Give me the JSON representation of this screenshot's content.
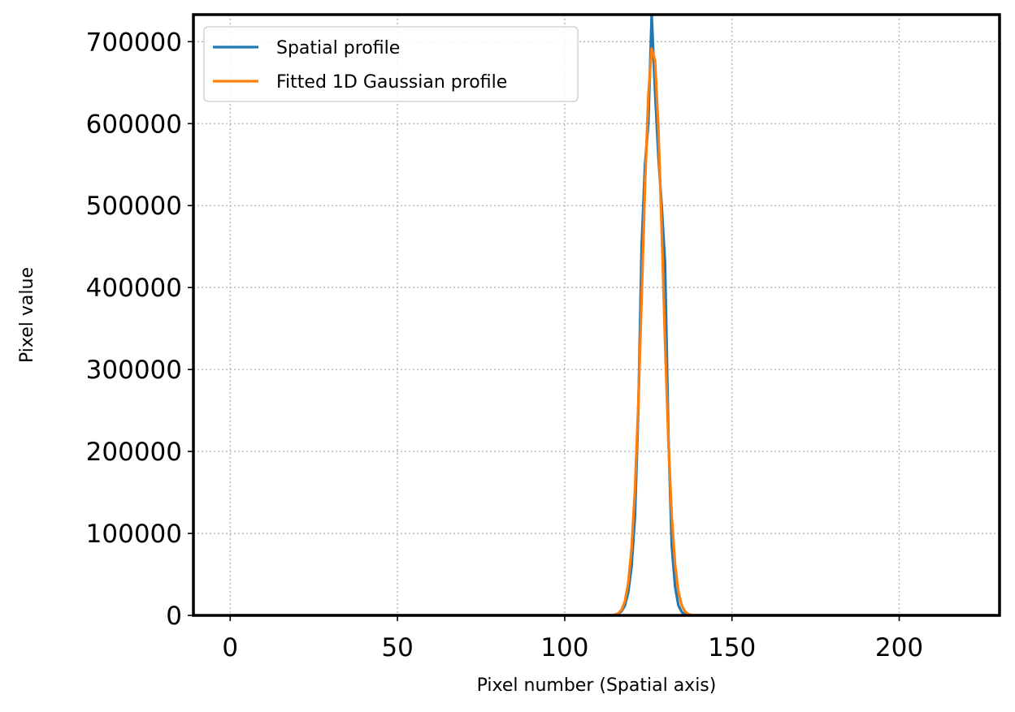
{
  "chart_data": {
    "type": "line",
    "title": "",
    "xlabel": "Pixel number (Spatial axis)",
    "ylabel": "Pixel value",
    "xlim": [
      -11,
      230
    ],
    "ylim": [
      0,
      733000
    ],
    "x_ticks": [
      0,
      50,
      100,
      150,
      200
    ],
    "y_ticks": [
      0,
      100000,
      200000,
      300000,
      400000,
      500000,
      600000,
      700000
    ],
    "grid": true,
    "legend_position": "top-left",
    "series": [
      {
        "name": "Spatial profile",
        "color": "#1f77b4",
        "points": [
          [
            0,
            0
          ],
          [
            20,
            0
          ],
          [
            40,
            0
          ],
          [
            60,
            0
          ],
          [
            80,
            0
          ],
          [
            100,
            0
          ],
          [
            110,
            0
          ],
          [
            114,
            300
          ],
          [
            115,
            800
          ],
          [
            116,
            2000
          ],
          [
            117,
            5000
          ],
          [
            118,
            12000
          ],
          [
            119,
            28000
          ],
          [
            120,
            60000
          ],
          [
            121,
            120000
          ],
          [
            122,
            250000
          ],
          [
            123,
            450000
          ],
          [
            124,
            550000
          ],
          [
            125,
            600000
          ],
          [
            126,
            733000
          ],
          [
            127,
            640000
          ],
          [
            128,
            560000
          ],
          [
            129,
            500000
          ],
          [
            130,
            430000
          ],
          [
            131,
            220000
          ],
          [
            132,
            85000
          ],
          [
            133,
            35000
          ],
          [
            134,
            12000
          ],
          [
            135,
            4000
          ],
          [
            136,
            1200
          ],
          [
            137,
            400
          ],
          [
            138,
            100
          ],
          [
            140,
            0
          ],
          [
            160,
            0
          ],
          [
            180,
            0
          ],
          [
            200,
            0
          ],
          [
            220,
            0
          ],
          [
            229,
            0
          ]
        ]
      },
      {
        "name": "Fitted 1D Gaussian profile",
        "color": "#ff7f0e",
        "gaussian": {
          "amplitude": 695000,
          "mean": 126.3,
          "sigma": 3.05,
          "x_start": 0,
          "x_end": 229
        }
      }
    ]
  }
}
